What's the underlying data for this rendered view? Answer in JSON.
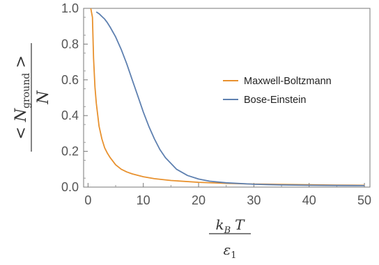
{
  "chart_data": {
    "type": "line",
    "title": "",
    "xlabel": {
      "numerator_base": "k",
      "numerator_sub": "B",
      "numerator_var": "T",
      "denominator_base": "ε",
      "denominator_sub": "1"
    },
    "ylabel": {
      "left": "< N",
      "sub": "ground",
      "right": " >",
      "denominator": "N"
    },
    "xlim": [
      -0.8,
      51
    ],
    "ylim": [
      0,
      1
    ],
    "x_ticks": [
      0,
      10,
      20,
      30,
      40,
      50
    ],
    "y_ticks": [
      "0.0",
      "0.2",
      "0.4",
      "0.6",
      "0.8",
      "1.0"
    ],
    "grid": false,
    "legend_position": "right",
    "series": [
      {
        "name": "Maxwell-Boltzmann",
        "color": "#e8912e",
        "x": [
          0.5,
          0.8,
          1,
          1.25,
          1.5,
          2,
          2.5,
          3,
          3.5,
          4,
          5,
          6,
          7,
          8,
          10,
          12,
          15,
          20,
          25,
          30,
          35,
          40,
          45,
          50
        ],
        "y": [
          1.0,
          0.95,
          0.72,
          0.56,
          0.47,
          0.34,
          0.27,
          0.22,
          0.19,
          0.165,
          0.125,
          0.1,
          0.085,
          0.074,
          0.058,
          0.047,
          0.037,
          0.027,
          0.021,
          0.017,
          0.015,
          0.013,
          0.011,
          0.01
        ]
      },
      {
        "name": "Bose-Einstein",
        "color": "#5e80b0",
        "x": [
          1.5,
          2,
          2.5,
          3,
          3.5,
          4,
          5,
          6,
          7,
          8,
          9,
          10,
          11,
          12,
          13,
          14,
          16,
          18,
          20,
          22,
          25,
          30,
          35,
          40,
          45,
          50
        ],
        "y": [
          0.98,
          0.97,
          0.955,
          0.94,
          0.92,
          0.895,
          0.84,
          0.77,
          0.69,
          0.6,
          0.51,
          0.42,
          0.34,
          0.27,
          0.21,
          0.165,
          0.1,
          0.065,
          0.045,
          0.033,
          0.024,
          0.016,
          0.012,
          0.01,
          0.009,
          0.008
        ]
      }
    ]
  }
}
